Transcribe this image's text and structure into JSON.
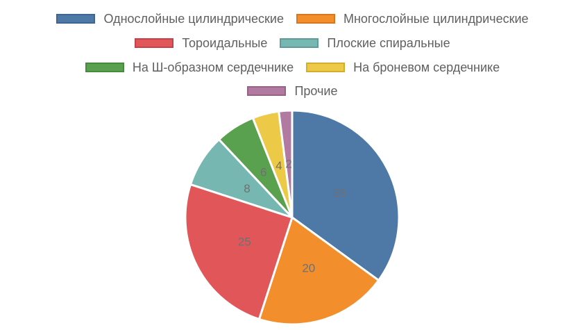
{
  "chart_data": {
    "type": "pie",
    "categories": [
      "Однослойные цилиндрические",
      "Многослойные цилиндрические",
      "Тороидальные",
      "Плоские спиральные",
      "На Ш-образном сердечнике",
      "На броневом сердечнике",
      "Прочие"
    ],
    "values": [
      35,
      20,
      25,
      8,
      6,
      4,
      2
    ],
    "colors": [
      "#4e79a7",
      "#f28e2b",
      "#e15759",
      "#76b7b2",
      "#59a14f",
      "#edc948",
      "#b07aa1"
    ],
    "legend_position": "top",
    "data_labels": true
  }
}
